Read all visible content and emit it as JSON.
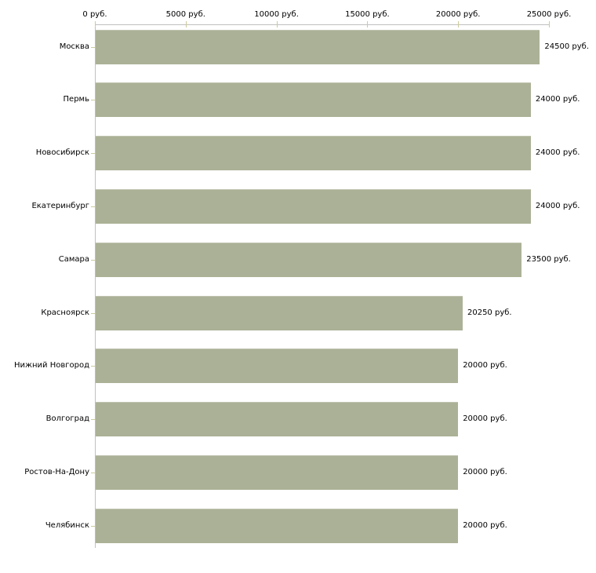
{
  "chart_data": {
    "type": "bar",
    "orientation": "horizontal",
    "title": "",
    "xlabel": "",
    "ylabel": "",
    "unit": "руб.",
    "xlim": [
      0,
      25000
    ],
    "grid": false,
    "legend": null,
    "categories": [
      "Москва",
      "Пермь",
      "Новосибирск",
      "Екатеринбург",
      "Самара",
      "Красноярск",
      "Нижний Новгород",
      "Волгоград",
      "Ростов-На-Дону",
      "Челябинск"
    ],
    "values": [
      24500,
      24000,
      24000,
      24000,
      23500,
      20250,
      20000,
      20000,
      20000,
      20000
    ],
    "value_labels": [
      "24500 руб.",
      "24000 руб.",
      "24000 руб.",
      "24000 руб.",
      "23500 руб.",
      "20250 руб.",
      "20000 руб.",
      "20000 руб.",
      "20000 руб.",
      "20000 руб."
    ],
    "x_ticks": [
      0,
      5000,
      10000,
      15000,
      20000,
      25000
    ],
    "x_tick_labels": [
      "0 руб.",
      "5000 руб.",
      "10000 руб.",
      "15000 руб.",
      "20000 руб.",
      "25000 руб."
    ],
    "colors": {
      "bar": "#abb196",
      "axis_line": "#c0c0c0",
      "tick_mark": "#cbcb9b",
      "text": "#000000",
      "background": "#ffffff"
    }
  }
}
